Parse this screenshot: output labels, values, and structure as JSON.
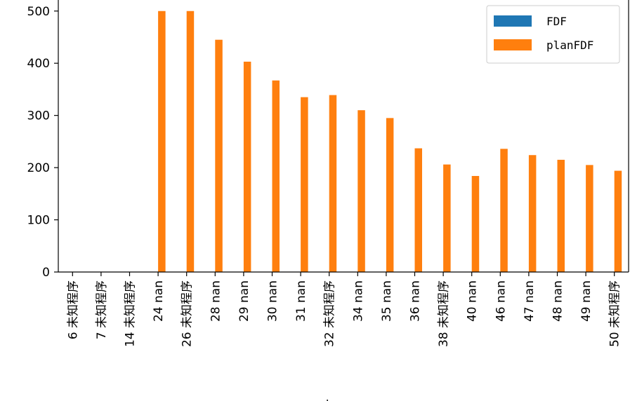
{
  "chart_data": {
    "type": "bar",
    "xlabel": "d_prog",
    "ylabel": "",
    "ylim": [
      0,
      540
    ],
    "yticks": [
      0,
      100,
      200,
      300,
      400,
      500
    ],
    "categories": [
      "6  未知程序",
      "7  未知程序",
      "14  未知程序",
      "24  nan",
      "26  未知程序",
      "28  nan",
      "29  nan",
      "30  nan",
      "31  nan",
      "32  未知程序",
      "34  nan",
      "35  nan",
      "36  nan",
      "38  未知程序",
      "40  nan",
      "46  nan",
      "47  nan",
      "48  nan",
      "49  nan",
      "50  未知程序"
    ],
    "series": [
      {
        "name": "FDF",
        "color": "#1f77b4",
        "values": [
          0,
          0,
          0,
          0,
          0,
          0,
          0,
          0,
          0,
          0,
          0,
          0,
          0,
          0,
          0,
          0,
          0,
          0,
          0,
          0
        ]
      },
      {
        "name": "planFDF",
        "color": "#ff7f0e",
        "values": [
          0,
          0,
          0,
          500,
          500,
          445,
          403,
          367,
          335,
          339,
          310,
          295,
          237,
          206,
          184,
          236,
          224,
          215,
          205,
          194
        ]
      }
    ],
    "legend_position": "top-right",
    "grid": false
  }
}
